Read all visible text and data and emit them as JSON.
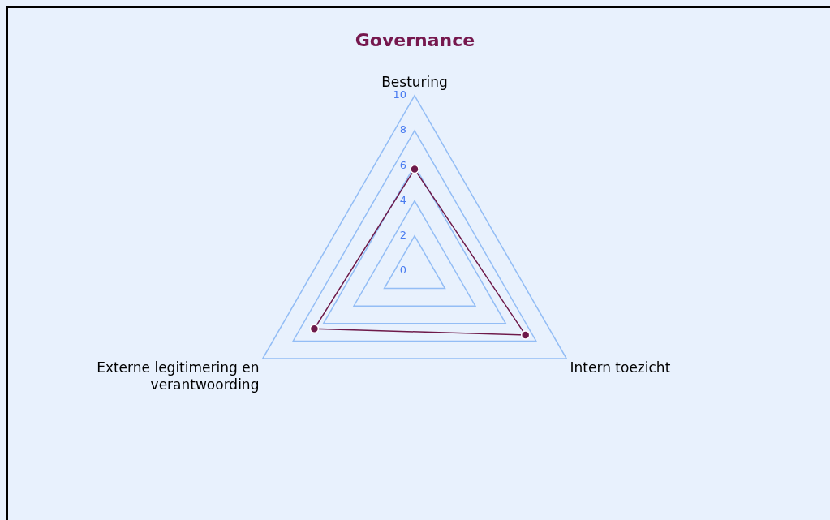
{
  "chart_data": {
    "type": "radar",
    "title": "Governance",
    "categories": [
      "Besturing",
      "Intern toezicht",
      "Externe legitimering en verantwoording"
    ],
    "series": [
      {
        "color": "#6e1a4a",
        "values": [
          5.8,
          7.3,
          6.6
        ]
      }
    ],
    "ylim": [
      0,
      10
    ],
    "yticks": [
      0,
      2,
      4,
      6,
      8,
      10
    ],
    "grid": true,
    "legend": false,
    "marker": "circle"
  }
}
